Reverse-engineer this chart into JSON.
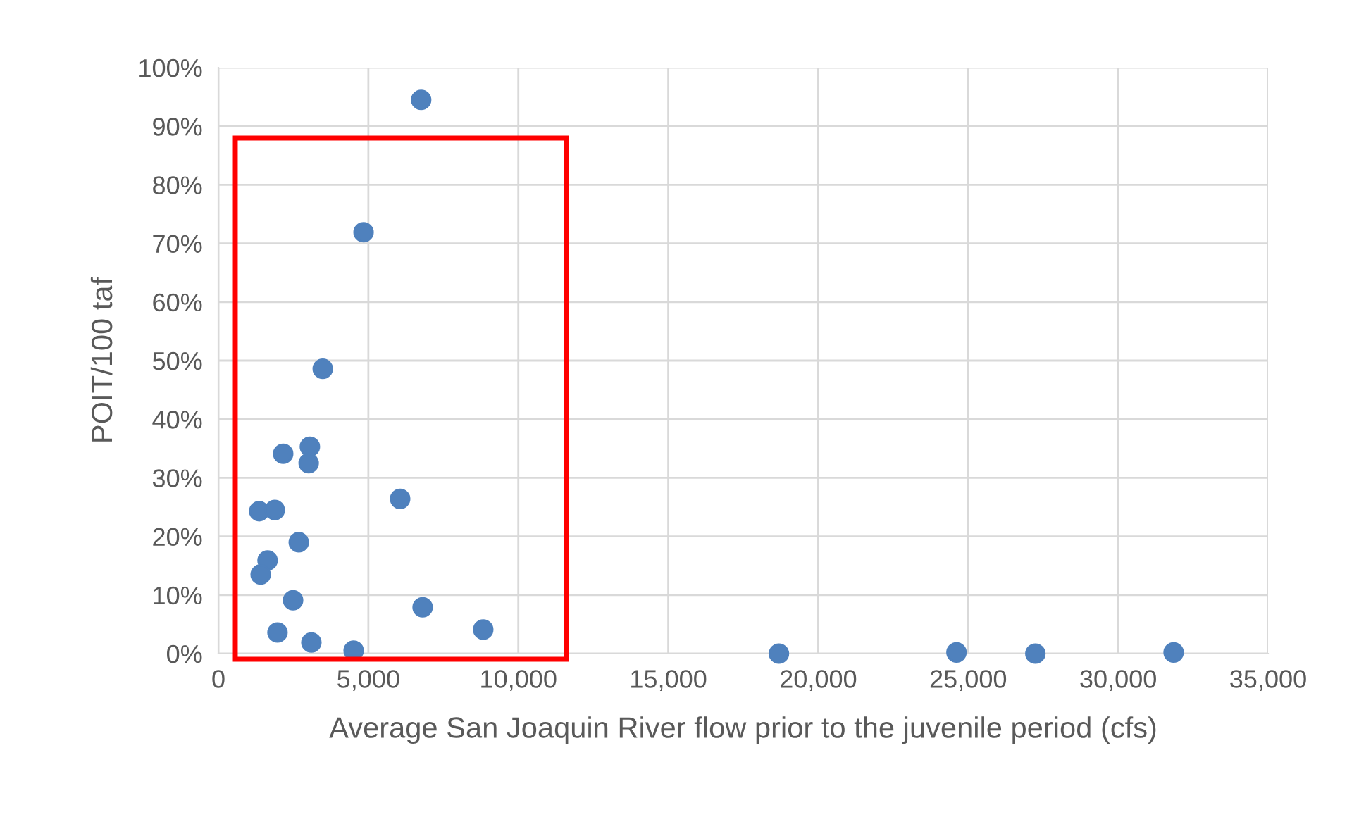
{
  "chart_data": {
    "type": "scatter",
    "xlabel": "Average San Joaquin River flow prior to the juvenile period (cfs)",
    "ylabel": "POIT/100 taf",
    "x": [
      6760,
      4840,
      3480,
      3050,
      2160,
      3010,
      6060,
      1360,
      1880,
      2680,
      1640,
      1410,
      2490,
      6810,
      8830,
      1970,
      3100,
      4510,
      18690,
      24610,
      27240,
      31850
    ],
    "values": [
      94.5,
      71.9,
      48.6,
      35.3,
      34.1,
      32.5,
      26.4,
      24.3,
      24.5,
      19.0,
      15.9,
      13.5,
      9.1,
      7.9,
      4.1,
      3.6,
      1.9,
      0.5,
      0,
      0.2,
      0,
      0.2
    ],
    "color": "#4f81bd",
    "marker": "circle",
    "grid": true,
    "xlim": [
      0,
      35000
    ],
    "xticks": [
      {
        "value": 0,
        "label": "0"
      },
      {
        "value": 5000,
        "label": "5,000"
      },
      {
        "value": 10000,
        "label": "10,000"
      },
      {
        "value": 15000,
        "label": "15,000"
      },
      {
        "value": 20000,
        "label": "20,000"
      },
      {
        "value": 25000,
        "label": "25,000"
      },
      {
        "value": 30000,
        "label": "30,000"
      },
      {
        "value": 35000,
        "label": "35,000"
      }
    ],
    "ylim": [
      0,
      100
    ],
    "yticks": [
      {
        "value": 0,
        "label": "0%"
      },
      {
        "value": 10,
        "label": "10%"
      },
      {
        "value": 20,
        "label": "20%"
      },
      {
        "value": 30,
        "label": "30%"
      },
      {
        "value": 40,
        "label": "40%"
      },
      {
        "value": 50,
        "label": "50%"
      },
      {
        "value": 60,
        "label": "60%"
      },
      {
        "value": 70,
        "label": "70%"
      },
      {
        "value": 80,
        "label": "80%"
      },
      {
        "value": 90,
        "label": "90%"
      },
      {
        "value": 100,
        "label": "100%"
      }
    ]
  }
}
